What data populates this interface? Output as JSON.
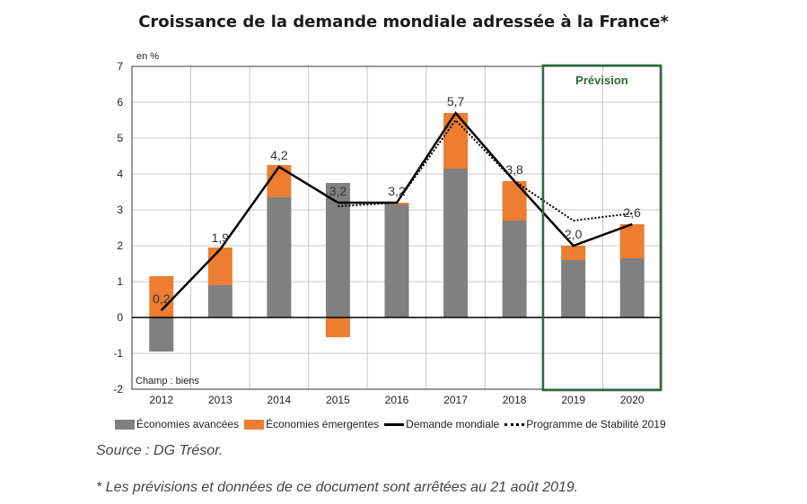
{
  "chart_data": {
    "type": "bar",
    "title": "Croissance de la demande mondiale adressée à la France*",
    "ylabel": "en %",
    "ylim": [
      -2,
      7
    ],
    "yticks": [
      7,
      6,
      5,
      4,
      3,
      2,
      1,
      0,
      -1,
      -2
    ],
    "categories": [
      "2012",
      "2013",
      "2014",
      "2015",
      "2016",
      "2017",
      "2018",
      "2019",
      "2020"
    ],
    "series": [
      {
        "name": "Économies avancées",
        "kind": "bar",
        "color": "#808080",
        "values": [
          -0.95,
          0.9,
          3.35,
          3.75,
          3.15,
          4.15,
          2.7,
          1.6,
          1.65
        ]
      },
      {
        "name": "Économies émergentes",
        "kind": "bar",
        "color": "#ED7D31",
        "values": [
          1.15,
          1.05,
          0.9,
          -0.55,
          0.05,
          1.55,
          1.1,
          0.4,
          0.95
        ]
      },
      {
        "name": "Demande mondiale",
        "kind": "line",
        "color": "#000000",
        "values": [
          0.2,
          1.9,
          4.2,
          3.2,
          3.2,
          5.7,
          3.8,
          2.0,
          2.6
        ]
      },
      {
        "name": "Programme de Stabilité 2019",
        "kind": "dotted-line",
        "color": "#000000",
        "values": [
          null,
          null,
          null,
          3.1,
          3.2,
          5.5,
          3.8,
          2.7,
          2.9
        ]
      }
    ],
    "data_labels": [
      "0,2",
      "1,9",
      "4,2",
      "3,2",
      "3,2",
      "5,7",
      "3,8",
      "2,0",
      "2,6"
    ],
    "forecast_box": {
      "label": "Prévision",
      "categories": [
        "2019",
        "2020"
      ],
      "color": "#2E6B3A"
    },
    "inner_note": "Champ : biens"
  },
  "legend": {
    "advanced": "Économies avancées",
    "emerging": "Économies émergentes",
    "demand": "Demande mondiale",
    "stability": "Programme de Stabilité 2019"
  },
  "source": "Source : DG Trésor.",
  "footnote": "* Les prévisions et données de ce document sont arrêtées au 21 août 2019."
}
